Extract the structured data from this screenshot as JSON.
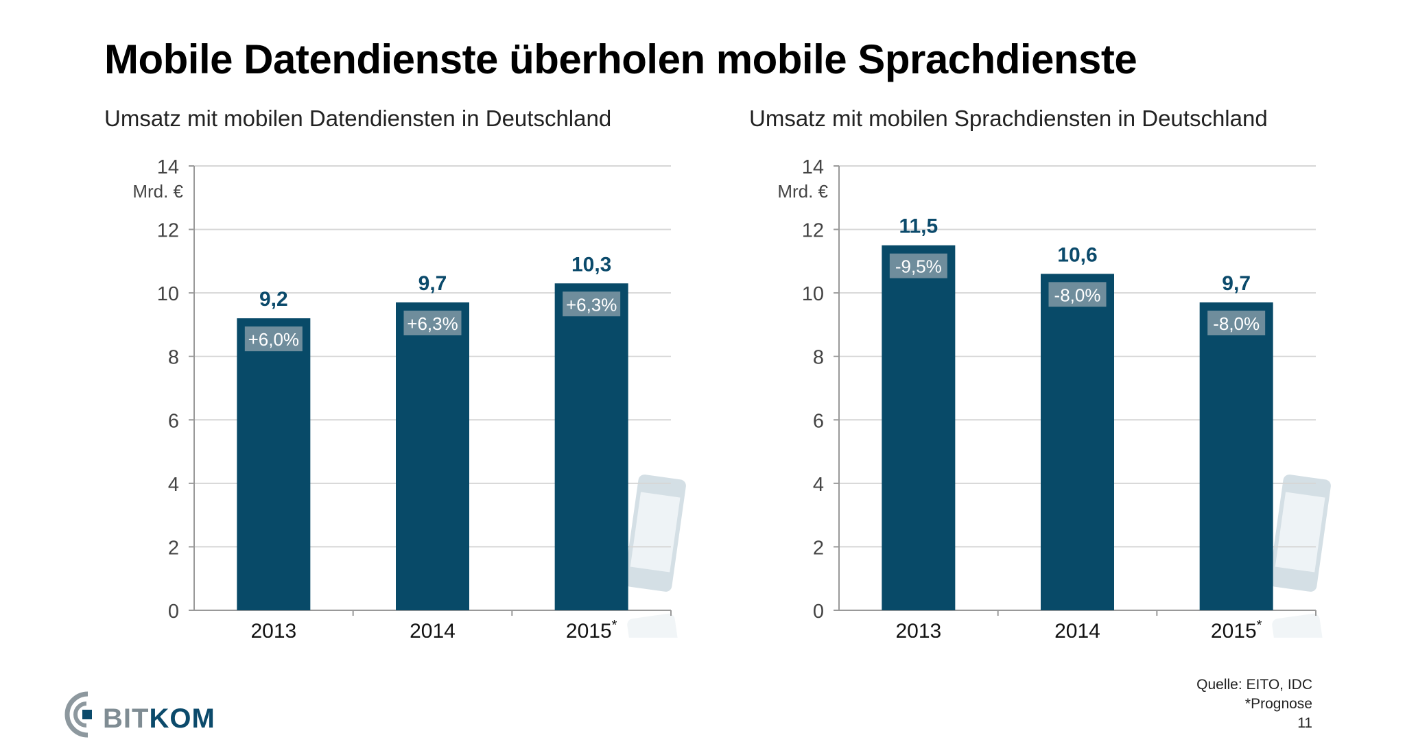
{
  "title": "Mobile Datendienste überholen mobile Sprachdienste",
  "colors": {
    "bar": "#084a68",
    "label": "#0b4a6b",
    "badge": "#6f8d9c",
    "grid": "#d6d6d6",
    "phone": "#d4dfe5"
  },
  "chart_data": [
    {
      "type": "bar",
      "title": "Umsatz mit mobilen Datendiensten in Deutschland",
      "ylabel": "Mrd. €",
      "ylim": [
        0,
        14
      ],
      "yticks": [
        "0",
        "2",
        "4",
        "6",
        "8",
        "10",
        "12",
        "14"
      ],
      "categories": [
        "2013",
        "2014",
        "2015"
      ],
      "category_suffix": [
        "",
        "",
        "*"
      ],
      "values": [
        9.2,
        9.7,
        10.3
      ],
      "value_labels": [
        "9,2",
        "9,7",
        "10,3"
      ],
      "change_labels": [
        "+6,0%",
        "+6,3%",
        "+6,3%"
      ],
      "grid": true,
      "decoration": "data-phone-icon"
    },
    {
      "type": "bar",
      "title": "Umsatz mit mobilen Sprachdiensten in Deutschland",
      "ylabel": "Mrd. €",
      "ylim": [
        0,
        14
      ],
      "yticks": [
        "0",
        "2",
        "4",
        "6",
        "8",
        "10",
        "12",
        "14"
      ],
      "categories": [
        "2013",
        "2014",
        "2015"
      ],
      "category_suffix": [
        "",
        "",
        "*"
      ],
      "values": [
        11.5,
        10.6,
        9.7
      ],
      "value_labels": [
        "11,5",
        "10,6",
        "9,7"
      ],
      "change_labels": [
        "-9,5%",
        "-8,0%",
        "-8,0%"
      ],
      "grid": true,
      "decoration": "voice-phone-icon"
    }
  ],
  "footer": {
    "source": "Quelle: EITO, IDC",
    "note": "*Prognose",
    "page": "11"
  },
  "logo": {
    "light": "BIT",
    "strong": "KOM"
  }
}
